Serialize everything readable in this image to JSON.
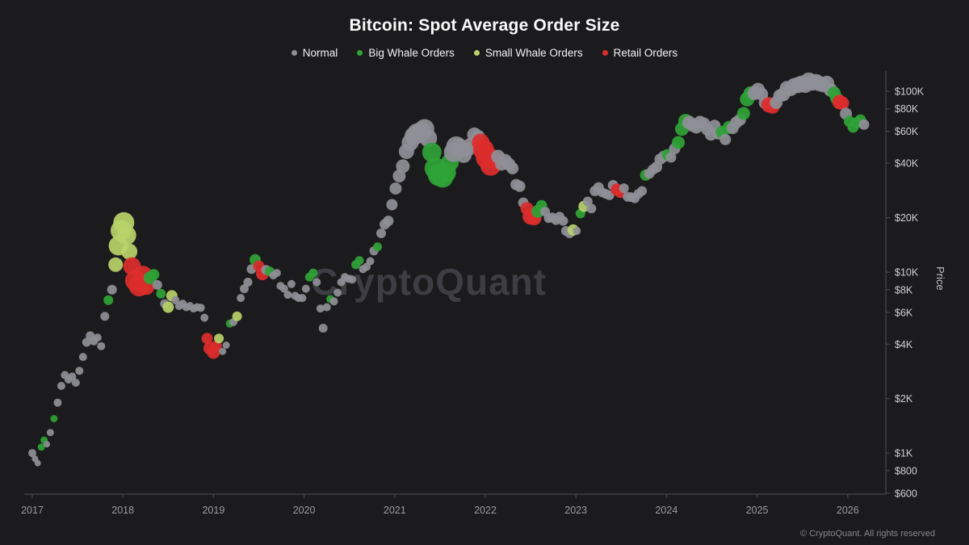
{
  "title": "Bitcoin: Spot Average Order Size",
  "watermark": "CryptoQuant",
  "footer": "© CryptoQuant. All rights reserved",
  "legend": [
    {
      "key": "n",
      "label": "Normal"
    },
    {
      "key": "b",
      "label": "Big Whale Orders"
    },
    {
      "key": "s",
      "label": "Small Whale Orders"
    },
    {
      "key": "r",
      "label": "Retail Orders"
    }
  ],
  "y_axis": {
    "label": "Price",
    "scale": "log",
    "tick_labels": [
      "$600",
      "$800",
      "$1K",
      "$2K",
      "$4K",
      "$6K",
      "$8K",
      "$10K",
      "$20K",
      "$40K",
      "$60K",
      "$80K",
      "$100K"
    ],
    "tick_values": [
      600,
      800,
      1000,
      2000,
      4000,
      6000,
      8000,
      10000,
      20000,
      40000,
      60000,
      80000,
      100000
    ]
  },
  "x_axis": {
    "tick_labels": [
      "2017",
      "2018",
      "2019",
      "2020",
      "2021",
      "2022",
      "2023",
      "2024",
      "2025",
      "2026"
    ],
    "tick_values": [
      2017,
      2018,
      2019,
      2020,
      2021,
      2022,
      2023,
      2024,
      2025,
      2026
    ]
  },
  "chart_data": {
    "type": "scatter",
    "title": "Bitcoin: Spot Average Order Size",
    "xlabel": "",
    "ylabel": "Price",
    "x_range": [
      2016.93,
      2026.45
    ],
    "y_range": [
      590,
      130000
    ],
    "grid": false,
    "legend_position": "top-center",
    "categories": {
      "n": "Normal",
      "b": "Big Whale Orders",
      "s": "Small Whale Orders",
      "r": "Retail Orders"
    },
    "colors": {
      "n": "#8f8f97",
      "b": "#2fa336",
      "s": "#b9d36a",
      "r": "#dd2c2c"
    },
    "points": [
      [
        2017.0,
        1000,
        "n",
        5
      ],
      [
        2017.03,
        930,
        "n",
        4
      ],
      [
        2017.06,
        880,
        "n",
        4
      ],
      [
        2017.1,
        1080,
        "b",
        4.5
      ],
      [
        2017.13,
        1180,
        "b",
        4.5
      ],
      [
        2017.16,
        1120,
        "n",
        4
      ],
      [
        2017.2,
        1300,
        "n",
        4.5
      ],
      [
        2017.24,
        1550,
        "b",
        4.5
      ],
      [
        2017.28,
        1900,
        "n",
        5
      ],
      [
        2017.32,
        2350,
        "n",
        5
      ],
      [
        2017.36,
        2700,
        "n",
        5
      ],
      [
        2017.4,
        2550,
        "n",
        5
      ],
      [
        2017.44,
        2650,
        "n",
        5
      ],
      [
        2017.48,
        2450,
        "n",
        5
      ],
      [
        2017.52,
        2850,
        "n",
        5
      ],
      [
        2017.56,
        3400,
        "n",
        5
      ],
      [
        2017.6,
        4100,
        "n",
        5.5
      ],
      [
        2017.64,
        4450,
        "n",
        5.5
      ],
      [
        2017.68,
        4150,
        "n",
        5
      ],
      [
        2017.72,
        4350,
        "n",
        5
      ],
      [
        2017.76,
        3900,
        "n",
        5
      ],
      [
        2017.8,
        5700,
        "n",
        5.5
      ],
      [
        2017.84,
        7000,
        "b",
        6
      ],
      [
        2017.88,
        8000,
        "n",
        6
      ],
      [
        2017.92,
        11000,
        "s",
        9
      ],
      [
        2017.95,
        14000,
        "s",
        12
      ],
      [
        2017.98,
        17000,
        "s",
        13
      ],
      [
        2018.01,
        18800,
        "s",
        13
      ],
      [
        2018.04,
        16000,
        "s",
        12
      ],
      [
        2018.07,
        13000,
        "s",
        10
      ],
      [
        2018.1,
        10800,
        "r",
        11
      ],
      [
        2018.14,
        9000,
        "r",
        13
      ],
      [
        2018.18,
        8400,
        "r",
        13
      ],
      [
        2018.22,
        9600,
        "r",
        12
      ],
      [
        2018.26,
        8300,
        "r",
        10
      ],
      [
        2018.3,
        9300,
        "b",
        8
      ],
      [
        2018.34,
        9700,
        "b",
        7
      ],
      [
        2018.38,
        8500,
        "n",
        6
      ],
      [
        2018.42,
        7600,
        "b",
        6
      ],
      [
        2018.46,
        6700,
        "n",
        5.5
      ],
      [
        2018.5,
        6400,
        "s",
        7
      ],
      [
        2018.54,
        7400,
        "s",
        7
      ],
      [
        2018.58,
        7000,
        "n",
        5
      ],
      [
        2018.62,
        6500,
        "n",
        5
      ],
      [
        2018.66,
        6700,
        "n",
        5
      ],
      [
        2018.7,
        6400,
        "n",
        5
      ],
      [
        2018.74,
        6500,
        "n",
        5
      ],
      [
        2018.78,
        6300,
        "n",
        5
      ],
      [
        2018.82,
        6400,
        "n",
        5
      ],
      [
        2018.86,
        6350,
        "n",
        5
      ],
      [
        2018.9,
        5600,
        "n",
        5
      ],
      [
        2018.93,
        4300,
        "r",
        7
      ],
      [
        2018.96,
        3800,
        "r",
        8
      ],
      [
        2019.0,
        3600,
        "r",
        8
      ],
      [
        2019.03,
        3900,
        "r",
        7
      ],
      [
        2019.06,
        4300,
        "s",
        6
      ],
      [
        2019.1,
        3650,
        "n",
        4.5
      ],
      [
        2019.14,
        3950,
        "n",
        4.5
      ],
      [
        2019.18,
        5200,
        "b",
        5
      ],
      [
        2019.22,
        5300,
        "n",
        5
      ],
      [
        2019.26,
        5700,
        "s",
        6
      ],
      [
        2019.3,
        7200,
        "n",
        5
      ],
      [
        2019.34,
        8100,
        "n",
        5.5
      ],
      [
        2019.38,
        8800,
        "n",
        5.5
      ],
      [
        2019.42,
        10400,
        "n",
        6
      ],
      [
        2019.46,
        11700,
        "b",
        7
      ],
      [
        2019.5,
        10800,
        "r",
        7
      ],
      [
        2019.54,
        9800,
        "r",
        8
      ],
      [
        2019.58,
        10300,
        "n",
        6
      ],
      [
        2019.62,
        10100,
        "b",
        6
      ],
      [
        2019.66,
        9600,
        "n",
        5
      ],
      [
        2019.7,
        9900,
        "n",
        5
      ],
      [
        2019.74,
        8400,
        "n",
        5
      ],
      [
        2019.78,
        8100,
        "n",
        5
      ],
      [
        2019.82,
        7500,
        "n",
        5
      ],
      [
        2019.86,
        8600,
        "n",
        5
      ],
      [
        2019.9,
        7400,
        "n",
        5
      ],
      [
        2019.94,
        7200,
        "n",
        5
      ],
      [
        2019.98,
        7200,
        "n",
        5
      ],
      [
        2020.02,
        8100,
        "n",
        5
      ],
      [
        2020.06,
        9400,
        "b",
        5.5
      ],
      [
        2020.1,
        9900,
        "b",
        5.5
      ],
      [
        2020.14,
        8800,
        "n",
        5
      ],
      [
        2020.18,
        6300,
        "n",
        5
      ],
      [
        2020.21,
        4900,
        "n",
        5.5
      ],
      [
        2020.25,
        6400,
        "n",
        5
      ],
      [
        2020.29,
        7100,
        "b",
        5
      ],
      [
        2020.33,
        6900,
        "n",
        5
      ],
      [
        2020.37,
        7700,
        "n",
        5
      ],
      [
        2020.41,
        8800,
        "n",
        5
      ],
      [
        2020.45,
        9400,
        "n",
        5
      ],
      [
        2020.49,
        9200,
        "n",
        5
      ],
      [
        2020.53,
        9100,
        "n",
        5
      ],
      [
        2020.57,
        11000,
        "b",
        5.5
      ],
      [
        2020.61,
        11600,
        "b",
        5.5
      ],
      [
        2020.65,
        10400,
        "n",
        5
      ],
      [
        2020.69,
        10700,
        "n",
        5
      ],
      [
        2020.73,
        11500,
        "n",
        5
      ],
      [
        2020.77,
        13100,
        "n",
        5.5
      ],
      [
        2020.81,
        13800,
        "b",
        5.5
      ],
      [
        2020.85,
        16400,
        "n",
        6
      ],
      [
        2020.89,
        18400,
        "n",
        6.5
      ],
      [
        2020.93,
        19200,
        "n",
        6.5
      ],
      [
        2020.97,
        23600,
        "n",
        7
      ],
      [
        2021.01,
        29000,
        "n",
        7.5
      ],
      [
        2021.05,
        34000,
        "n",
        8
      ],
      [
        2021.09,
        38500,
        "n",
        8.5
      ],
      [
        2021.13,
        46500,
        "n",
        9.5
      ],
      [
        2021.17,
        52000,
        "n",
        10.5
      ],
      [
        2021.21,
        56500,
        "n",
        11.5
      ],
      [
        2021.25,
        58500,
        "n",
        12.5
      ],
      [
        2021.29,
        59500,
        "n",
        12.5
      ],
      [
        2021.33,
        62000,
        "n",
        12
      ],
      [
        2021.37,
        55000,
        "n",
        11
      ],
      [
        2021.41,
        46000,
        "b",
        12
      ],
      [
        2021.45,
        37500,
        "b",
        13.5
      ],
      [
        2021.49,
        34500,
        "b",
        14
      ],
      [
        2021.53,
        33500,
        "b",
        13
      ],
      [
        2021.57,
        35500,
        "b",
        12
      ],
      [
        2021.61,
        40500,
        "b",
        11
      ],
      [
        2021.65,
        46000,
        "n",
        12
      ],
      [
        2021.68,
        49500,
        "n",
        12.5
      ],
      [
        2021.72,
        48500,
        "n",
        11.5
      ],
      [
        2021.76,
        44500,
        "n",
        10
      ],
      [
        2021.8,
        47500,
        "n",
        9
      ],
      [
        2021.84,
        50500,
        "n",
        9
      ],
      [
        2021.88,
        57500,
        "n",
        9
      ],
      [
        2021.92,
        56000,
        "n",
        8.5
      ],
      [
        2021.95,
        52000,
        "r",
        11
      ],
      [
        2021.98,
        47500,
        "r",
        13
      ],
      [
        2022.02,
        43000,
        "r",
        14
      ],
      [
        2022.06,
        39000,
        "r",
        13
      ],
      [
        2022.1,
        41500,
        "r",
        11
      ],
      [
        2022.14,
        43500,
        "n",
        8.5
      ],
      [
        2022.18,
        39500,
        "n",
        8
      ],
      [
        2022.22,
        41500,
        "n",
        8
      ],
      [
        2022.26,
        39500,
        "n",
        8
      ],
      [
        2022.3,
        37500,
        "n",
        7.5
      ],
      [
        2022.34,
        30500,
        "n",
        7
      ],
      [
        2022.38,
        29800,
        "n",
        7
      ],
      [
        2022.42,
        24200,
        "n",
        6.5
      ],
      [
        2022.46,
        22500,
        "r",
        8
      ],
      [
        2022.5,
        20300,
        "r",
        10
      ],
      [
        2022.54,
        19900,
        "r",
        9
      ],
      [
        2022.58,
        21700,
        "b",
        8
      ],
      [
        2022.62,
        23300,
        "b",
        7
      ],
      [
        2022.66,
        21600,
        "n",
        6
      ],
      [
        2022.7,
        19900,
        "n",
        6
      ],
      [
        2022.74,
        20100,
        "n",
        6
      ],
      [
        2022.78,
        19400,
        "n",
        6
      ],
      [
        2022.82,
        20300,
        "n",
        6
      ],
      [
        2022.86,
        19200,
        "n",
        6
      ],
      [
        2022.89,
        16900,
        "n",
        6
      ],
      [
        2022.93,
        16400,
        "n",
        6
      ],
      [
        2022.97,
        17100,
        "s",
        7
      ],
      [
        2023.01,
        16900,
        "n",
        5
      ],
      [
        2023.05,
        21100,
        "b",
        6
      ],
      [
        2023.09,
        23100,
        "s",
        7
      ],
      [
        2023.13,
        24600,
        "n",
        6
      ],
      [
        2023.17,
        22500,
        "n",
        6
      ],
      [
        2023.21,
        28100,
        "n",
        6.5
      ],
      [
        2023.25,
        29400,
        "n",
        6.5
      ],
      [
        2023.29,
        27600,
        "n",
        6
      ],
      [
        2023.33,
        27100,
        "n",
        6
      ],
      [
        2023.37,
        26600,
        "n",
        6
      ],
      [
        2023.41,
        30200,
        "n",
        6.5
      ],
      [
        2023.45,
        28600,
        "r",
        7.5
      ],
      [
        2023.49,
        27600,
        "r",
        7
      ],
      [
        2023.53,
        29100,
        "n",
        6
      ],
      [
        2023.57,
        26100,
        "n",
        6
      ],
      [
        2023.61,
        26000,
        "n",
        6
      ],
      [
        2023.65,
        25600,
        "n",
        6
      ],
      [
        2023.69,
        27100,
        "n",
        6
      ],
      [
        2023.73,
        28100,
        "n",
        6
      ],
      [
        2023.77,
        34400,
        "b",
        7
      ],
      [
        2023.81,
        35100,
        "n",
        6.5
      ],
      [
        2023.85,
        36900,
        "n",
        6.5
      ],
      [
        2023.89,
        38100,
        "n",
        7
      ],
      [
        2023.93,
        42100,
        "n",
        7
      ],
      [
        2023.97,
        43600,
        "n",
        7
      ],
      [
        2024.01,
        44600,
        "b",
        7
      ],
      [
        2024.05,
        43100,
        "n",
        6.5
      ],
      [
        2024.09,
        48100,
        "n",
        7
      ],
      [
        2024.13,
        52100,
        "b",
        8
      ],
      [
        2024.17,
        61900,
        "b",
        8.5
      ],
      [
        2024.21,
        68400,
        "b",
        9
      ],
      [
        2024.25,
        67100,
        "n",
        8.5
      ],
      [
        2024.29,
        64600,
        "n",
        8
      ],
      [
        2024.33,
        63400,
        "n",
        8
      ],
      [
        2024.37,
        67400,
        "n",
        8
      ],
      [
        2024.41,
        66100,
        "n",
        8
      ],
      [
        2024.45,
        61400,
        "n",
        7.5
      ],
      [
        2024.49,
        57600,
        "n",
        7.5
      ],
      [
        2024.53,
        64400,
        "n",
        7.5
      ],
      [
        2024.57,
        58400,
        "n",
        7.5
      ],
      [
        2024.61,
        59600,
        "b",
        7.5
      ],
      [
        2024.65,
        54100,
        "n",
        7
      ],
      [
        2024.69,
        63100,
        "b",
        8
      ],
      [
        2024.73,
        62600,
        "n",
        7.5
      ],
      [
        2024.77,
        67100,
        "n",
        7.5
      ],
      [
        2024.81,
        69600,
        "n",
        7.5
      ],
      [
        2024.85,
        75400,
        "b",
        8
      ],
      [
        2024.89,
        90400,
        "b",
        9
      ],
      [
        2024.93,
        97100,
        "b",
        9
      ],
      [
        2024.97,
        97600,
        "n",
        8.5
      ],
      [
        2025.01,
        102000,
        "n",
        8.5
      ],
      [
        2025.05,
        96400,
        "n",
        8
      ],
      [
        2025.09,
        86400,
        "n",
        8
      ],
      [
        2025.13,
        84100,
        "r",
        9.5
      ],
      [
        2025.17,
        82400,
        "r",
        9
      ],
      [
        2025.21,
        86600,
        "n",
        8
      ],
      [
        2025.25,
        94400,
        "n",
        8
      ],
      [
        2025.29,
        96100,
        "n",
        8.5
      ],
      [
        2025.33,
        104000,
        "n",
        9
      ],
      [
        2025.37,
        103100,
        "n",
        9
      ],
      [
        2025.41,
        107400,
        "n",
        9.5
      ],
      [
        2025.45,
        108100,
        "n",
        10
      ],
      [
        2025.49,
        110100,
        "n",
        10
      ],
      [
        2025.53,
        108600,
        "n",
        10
      ],
      [
        2025.57,
        114100,
        "n",
        10.5
      ],
      [
        2025.61,
        111600,
        "n",
        10
      ],
      [
        2025.65,
        112400,
        "n",
        10
      ],
      [
        2025.69,
        110100,
        "n",
        9.5
      ],
      [
        2025.73,
        108100,
        "n",
        9
      ],
      [
        2025.77,
        111100,
        "n",
        9
      ],
      [
        2025.81,
        101900,
        "n",
        8.5
      ],
      [
        2025.85,
        97900,
        "b",
        8
      ],
      [
        2025.88,
        91100,
        "b",
        8
      ],
      [
        2025.91,
        87100,
        "r",
        9
      ],
      [
        2025.94,
        85900,
        "r",
        8.5
      ],
      [
        2025.98,
        75100,
        "n",
        7.5
      ],
      [
        2026.02,
        68100,
        "b",
        7
      ],
      [
        2026.06,
        63400,
        "b",
        7
      ],
      [
        2026.1,
        66900,
        "b",
        7
      ],
      [
        2026.14,
        69400,
        "b",
        7
      ],
      [
        2026.18,
        65400,
        "n",
        6.5
      ]
    ]
  }
}
